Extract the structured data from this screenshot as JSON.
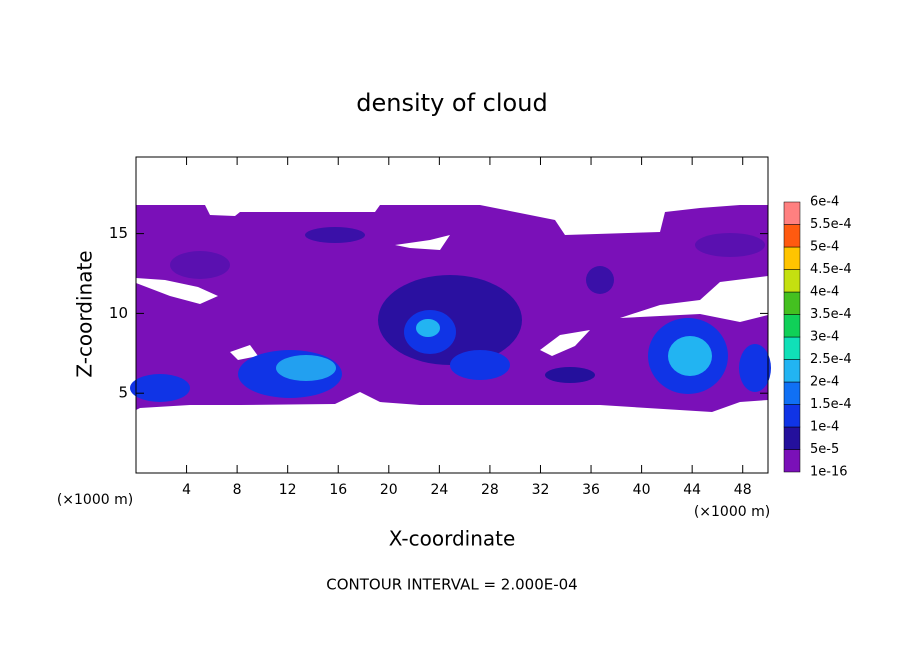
{
  "chart_data": {
    "type": "contour",
    "title": "density of cloud",
    "x_label": "X-coordinate",
    "y_label": "Z-coordinate",
    "x_unit": "(×1000 m)",
    "y_unit": "(×1000 m)",
    "footer": "CONTOUR INTERVAL = 2.000E-04",
    "xlim": [
      0,
      50
    ],
    "xticks": [
      4,
      8,
      12,
      16,
      20,
      24,
      28,
      32,
      36,
      40,
      44,
      48
    ],
    "ylim": [
      0,
      19.8
    ],
    "yticks": [
      5,
      10,
      15
    ],
    "colorbar": {
      "levels": [
        {
          "value": 1e-16,
          "label": "1e-16"
        },
        {
          "value": 5e-05,
          "label": "5e-5"
        },
        {
          "value": 0.0001,
          "label": "1e-4"
        },
        {
          "value": 0.00015,
          "label": "1.5e-4"
        },
        {
          "value": 0.0002,
          "label": "2e-4"
        },
        {
          "value": 0.00025,
          "label": "2.5e-4"
        },
        {
          "value": 0.0003,
          "label": "3e-4"
        },
        {
          "value": 0.00035,
          "label": "3.5e-4"
        },
        {
          "value": 0.0004,
          "label": "4e-4"
        },
        {
          "value": 0.00045,
          "label": "4.5e-4"
        },
        {
          "value": 0.0005,
          "label": "5e-4"
        },
        {
          "value": 0.00055,
          "label": "5.5e-4"
        },
        {
          "value": 0.0006,
          "label": "6e-4"
        }
      ],
      "colors": [
        "#7a10b8",
        "#24109c",
        "#1034e6",
        "#1070f4",
        "#22b4f2",
        "#10e0b8",
        "#10d058",
        "#44c020",
        "#c4e010",
        "#ffc400",
        "#ff5a10",
        "#ff8080"
      ]
    }
  }
}
